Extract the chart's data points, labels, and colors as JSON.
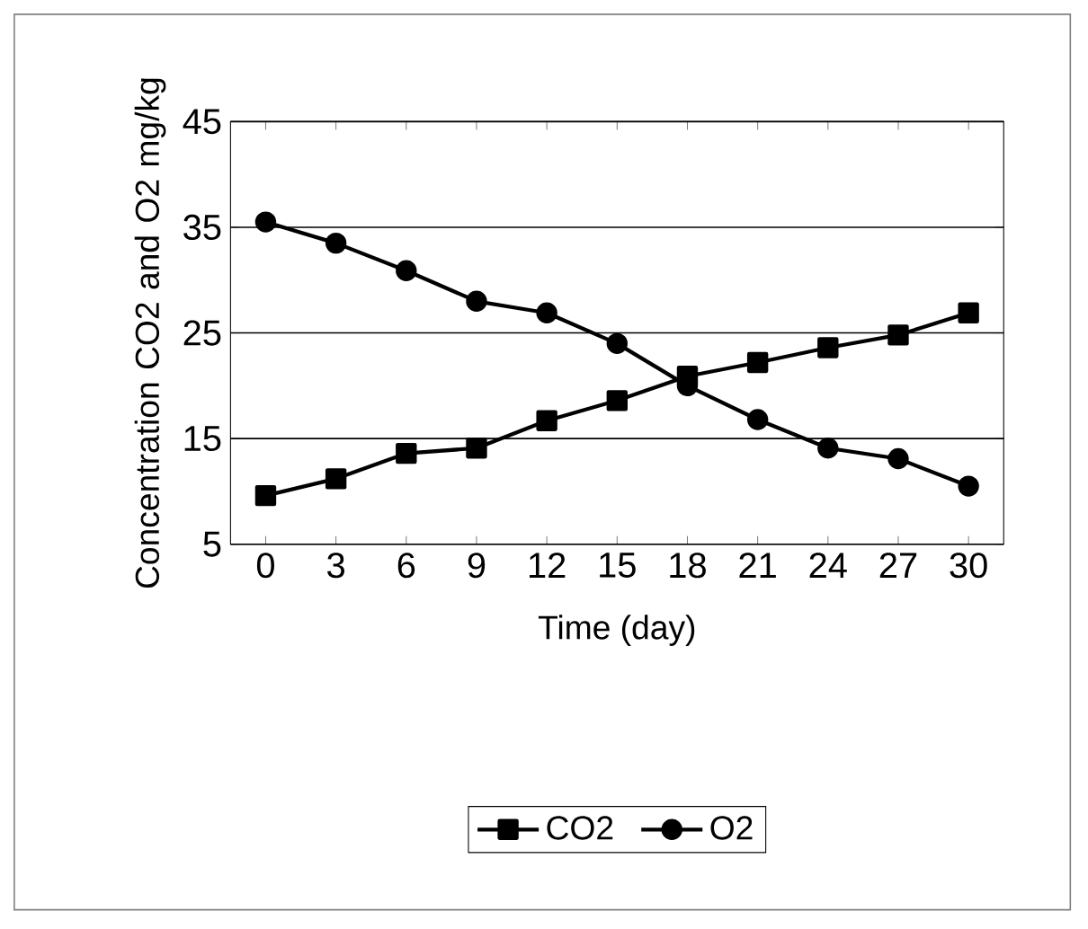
{
  "chart_data": {
    "type": "line",
    "xlabel": "Time (day)",
    "ylabel": "Concentration CO2 and O2 mg/kg",
    "categories": [
      "0",
      "3",
      "6",
      "9",
      "12",
      "15",
      "18",
      "21",
      "24",
      "27",
      "30"
    ],
    "series": [
      {
        "name": "CO2",
        "color": "#000000",
        "marker": "square",
        "values": [
          9.6,
          11.2,
          13.6,
          14.1,
          16.7,
          18.6,
          20.9,
          22.2,
          23.6,
          24.8,
          26.9
        ]
      },
      {
        "name": "O2",
        "color": "#000000",
        "marker": "circle",
        "values": [
          35.5,
          33.5,
          30.9,
          28,
          26.9,
          24,
          20,
          16.8,
          14.1,
          13.1,
          10.5
        ]
      }
    ],
    "ylim": [
      5,
      45
    ],
    "yticks": [
      5,
      15,
      25,
      35,
      45
    ],
    "grid": "y",
    "legend": "bottom",
    "line_style": "solid"
  }
}
